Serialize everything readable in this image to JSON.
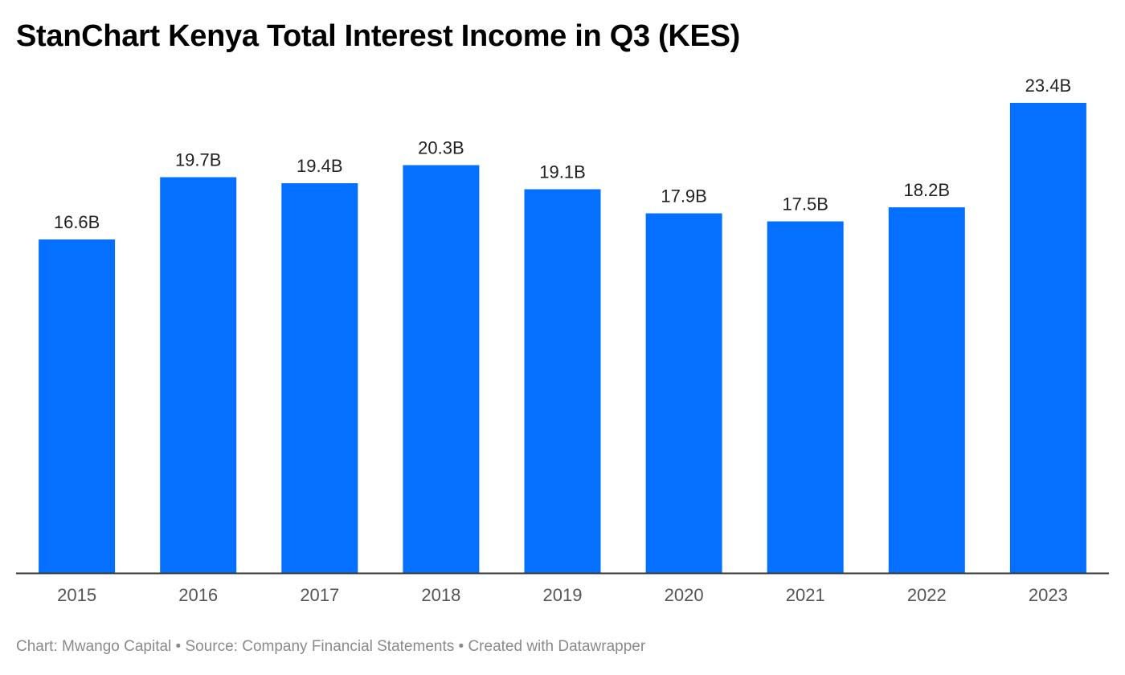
{
  "title": "StanChart Kenya Total Interest Income in Q3 (KES)",
  "footer": "Chart: Mwango Capital • Source: Company Financial Statements • Created with Datawrapper",
  "colors": {
    "bar": "#0570ff",
    "baseline": "#333333"
  },
  "chart_data": {
    "type": "bar",
    "title": "StanChart Kenya Total Interest Income in Q3 (KES)",
    "categories": [
      "2015",
      "2016",
      "2017",
      "2018",
      "2019",
      "2020",
      "2021",
      "2022",
      "2023"
    ],
    "values": [
      16.6,
      19.7,
      19.4,
      20.3,
      19.1,
      17.9,
      17.5,
      18.2,
      23.4
    ],
    "value_labels": [
      "16.6B",
      "19.7B",
      "19.4B",
      "20.3B",
      "19.1B",
      "17.9B",
      "17.5B",
      "18.2B",
      "23.4B"
    ],
    "unit": "B",
    "xlabel": "",
    "ylabel": "",
    "ylim": [
      0,
      23.4
    ],
    "grid": false,
    "legend": "none"
  }
}
